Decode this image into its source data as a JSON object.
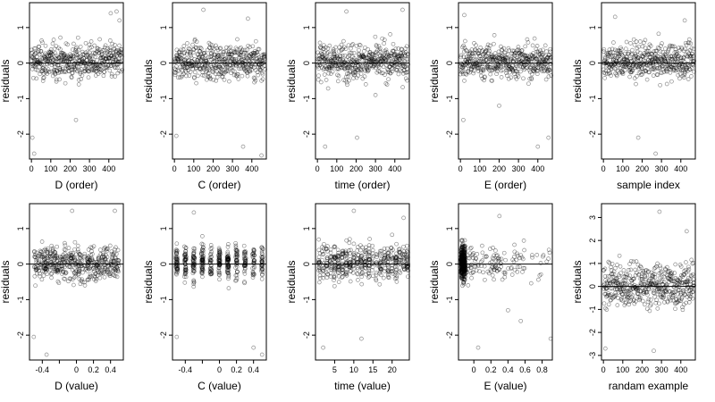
{
  "chart_data": [
    {
      "type": "scatter",
      "xlabel": "D (order)",
      "ylabel": "residuals",
      "xlim": [
        -10,
        475
      ],
      "ylim": [
        -2.7,
        1.7
      ],
      "xticks": [
        0,
        100,
        200,
        300,
        400
      ],
      "yticks": [
        -2,
        -1,
        0,
        1
      ],
      "x_kind": "index",
      "n_points": 470,
      "reference_line_y": 0,
      "points": [
        [
          14,
          -2.55
        ],
        [
          5,
          -2.1
        ],
        [
          60,
          -0.5
        ],
        [
          120,
          0.4
        ],
        [
          230,
          -1.6
        ],
        [
          245,
          -0.6
        ],
        [
          300,
          0.3
        ],
        [
          410,
          1.4
        ],
        [
          440,
          1.45
        ],
        [
          455,
          1.2
        ]
      ]
    },
    {
      "type": "scatter",
      "xlabel": "C (order)",
      "ylabel": "residuals",
      "xlim": [
        -10,
        475
      ],
      "ylim": [
        -2.7,
        1.7
      ],
      "xticks": [
        0,
        100,
        200,
        300,
        400
      ],
      "yticks": [
        -2,
        -1,
        0,
        1
      ],
      "x_kind": "index",
      "n_points": 470,
      "reference_line_y": 0,
      "points": [
        [
          10,
          -2.05
        ],
        [
          150,
          1.5
        ],
        [
          230,
          -0.3
        ],
        [
          355,
          -2.35
        ],
        [
          450,
          -2.6
        ],
        [
          380,
          1.25
        ]
      ]
    },
    {
      "type": "scatter",
      "xlabel": "time (order)",
      "ylabel": "residuals",
      "xlim": [
        -10,
        475
      ],
      "ylim": [
        -2.7,
        1.7
      ],
      "xticks": [
        0,
        100,
        200,
        300,
        400
      ],
      "yticks": [
        -2,
        -1,
        0,
        1
      ],
      "x_kind": "index",
      "n_points": 470,
      "reference_line_y": 0,
      "points": [
        [
          40,
          -2.35
        ],
        [
          205,
          -2.1
        ],
        [
          150,
          1.45
        ],
        [
          300,
          -0.9
        ],
        [
          440,
          1.5
        ]
      ]
    },
    {
      "type": "scatter",
      "xlabel": "E (order)",
      "ylabel": "residuals",
      "xlim": [
        -10,
        475
      ],
      "ylim": [
        -2.7,
        1.7
      ],
      "xticks": [
        0,
        100,
        200,
        300,
        400
      ],
      "yticks": [
        -2,
        -1,
        0,
        1
      ],
      "x_kind": "index",
      "n_points": 470,
      "reference_line_y": 0,
      "points": [
        [
          15,
          -1.6
        ],
        [
          200,
          -1.2
        ],
        [
          400,
          -2.35
        ],
        [
          455,
          -2.1
        ],
        [
          20,
          1.35
        ]
      ]
    },
    {
      "type": "scatter",
      "xlabel": "sample index",
      "ylabel": "residuals",
      "xlim": [
        -10,
        475
      ],
      "ylim": [
        -2.7,
        1.7
      ],
      "xticks": [
        0,
        100,
        200,
        300,
        400
      ],
      "yticks": [
        -2,
        -1,
        0,
        1
      ],
      "x_kind": "index",
      "n_points": 470,
      "reference_line_y": 0,
      "points": [
        [
          270,
          -2.55
        ],
        [
          180,
          -2.1
        ],
        [
          60,
          1.3
        ],
        [
          420,
          1.2
        ]
      ]
    },
    {
      "type": "scatter",
      "xlabel": "D (value)",
      "ylabel": "residuals",
      "xlim": [
        -0.55,
        0.55
      ],
      "ylim": [
        -2.7,
        1.7
      ],
      "xticks": [
        -0.4,
        -0.2,
        0.0,
        0.2,
        0.4
      ],
      "yticks": [
        -2,
        -1,
        0,
        1
      ],
      "xtick_labels_shown": [
        -0.4,
        0.0,
        0.2,
        0.4
      ],
      "x_kind": "value",
      "x_range": [
        -0.5,
        0.5
      ],
      "n_points": 470,
      "reference_line_y": 0,
      "points": [
        [
          -0.35,
          -2.55
        ],
        [
          -0.5,
          -2.05
        ],
        [
          0.07,
          -0.5
        ],
        [
          0.1,
          -0.6
        ],
        [
          -0.05,
          1.5
        ],
        [
          0.45,
          1.5
        ]
      ]
    },
    {
      "type": "scatter",
      "xlabel": "C (value)",
      "ylabel": "residuals",
      "xlim": [
        -0.55,
        0.55
      ],
      "ylim": [
        -2.7,
        1.7
      ],
      "xticks": [
        -0.4,
        -0.2,
        0.0,
        0.2,
        0.4
      ],
      "yticks": [
        -2,
        -1,
        0,
        1
      ],
      "xtick_labels_shown": [
        -0.4,
        0.0,
        0.2,
        0.4
      ],
      "x_kind": "discrete",
      "x_levels": [
        -0.5,
        -0.4,
        -0.3,
        -0.2,
        -0.1,
        0.0,
        0.1,
        0.2,
        0.3,
        0.4,
        0.5
      ],
      "n_points": 470,
      "reference_line_y": 0,
      "points": [
        [
          -0.5,
          -2.05
        ],
        [
          0.4,
          -2.35
        ],
        [
          0.5,
          -2.55
        ],
        [
          -0.3,
          1.45
        ]
      ]
    },
    {
      "type": "scatter",
      "xlabel": "time (value)",
      "ylabel": "residuals",
      "xlim": [
        0,
        24.5
      ],
      "ylim": [
        -2.7,
        1.7
      ],
      "xticks": [
        5,
        10,
        15,
        20
      ],
      "yticks": [
        -2,
        -1,
        0,
        1
      ],
      "x_kind": "discrete",
      "x_levels": [
        1,
        2,
        3,
        4,
        5,
        6,
        7,
        8,
        9,
        10,
        11,
        12,
        13,
        14,
        15,
        16,
        17,
        18,
        19,
        20,
        21,
        22,
        23,
        24
      ],
      "n_points": 470,
      "reference_line_y": 0,
      "points": [
        [
          2,
          -2.35
        ],
        [
          12,
          -2.1
        ],
        [
          10,
          1.5
        ],
        [
          23,
          1.3
        ]
      ]
    },
    {
      "type": "scatter",
      "xlabel": "E (value)",
      "ylabel": "residuals",
      "xlim": [
        -0.18,
        0.92
      ],
      "ylim": [
        -2.7,
        1.7
      ],
      "xticks": [
        0.0,
        0.2,
        0.4,
        0.6,
        0.8
      ],
      "yticks": [
        -2,
        -1,
        0,
        1
      ],
      "x_kind": "value",
      "x_range": [
        -0.15,
        0.9
      ],
      "n_points": 470,
      "reference_line_y": 0,
      "points": [
        [
          0.9,
          -2.1
        ],
        [
          0.55,
          -1.6
        ],
        [
          0.4,
          -1.3
        ],
        [
          0.05,
          -2.35
        ],
        [
          0.3,
          1.35
        ],
        [
          0.88,
          0.4
        ]
      ]
    },
    {
      "type": "scatter",
      "xlabel": "randam example",
      "ylabel": "residuals",
      "xlim": [
        -10,
        475
      ],
      "ylim": [
        -3.2,
        3.6
      ],
      "xticks": [
        0,
        100,
        200,
        300,
        400
      ],
      "yticks": [
        -3,
        -2,
        -1,
        0,
        1,
        2,
        3
      ],
      "x_kind": "index",
      "n_points": 470,
      "reference_line_y": 0,
      "points": [
        [
          290,
          3.25
        ],
        [
          10,
          -2.7
        ],
        [
          260,
          -2.8
        ],
        [
          430,
          2.4
        ]
      ]
    }
  ]
}
